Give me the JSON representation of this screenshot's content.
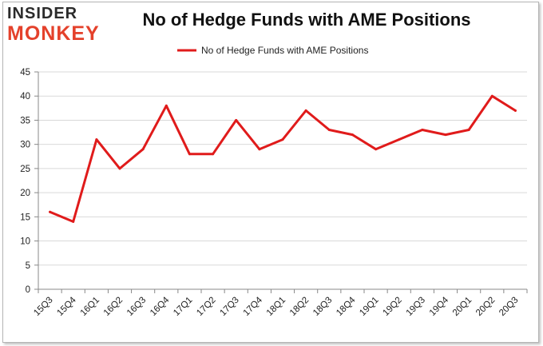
{
  "logo": {
    "top": "INSIDER",
    "bottom": "MONKEY"
  },
  "chart_data": {
    "type": "line",
    "title": "No of Hedge Funds with AME Positions",
    "xlabel": "",
    "ylabel": "",
    "ylim": [
      0,
      45
    ],
    "yticks": [
      0,
      5,
      10,
      15,
      20,
      25,
      30,
      35,
      40,
      45
    ],
    "grid": true,
    "legend_position": "top-center",
    "categories": [
      "15Q3",
      "15Q4",
      "16Q1",
      "16Q2",
      "16Q3",
      "16Q4",
      "17Q1",
      "17Q2",
      "17Q3",
      "17Q4",
      "18Q1",
      "18Q2",
      "18Q3",
      "18Q4",
      "19Q1",
      "19Q2",
      "19Q3",
      "19Q4",
      "20Q1",
      "20Q2",
      "20Q3"
    ],
    "series": [
      {
        "name": "No of Hedge Funds with AME Positions",
        "color": "#e01b1b",
        "values": [
          16,
          14,
          31,
          25,
          29,
          38,
          28,
          28,
          35,
          29,
          31,
          37,
          33,
          32,
          29,
          31,
          33,
          32,
          33,
          40,
          37
        ]
      }
    ]
  }
}
